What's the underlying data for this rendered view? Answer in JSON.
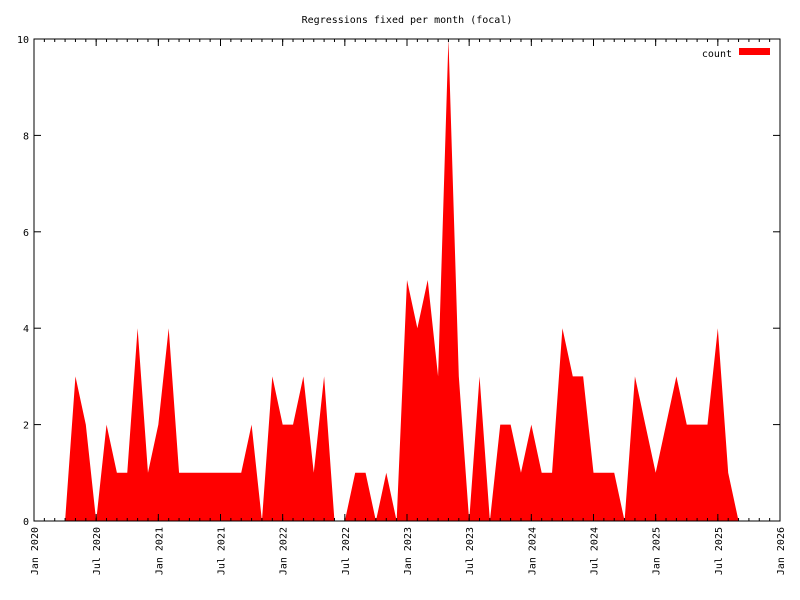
{
  "chart_data": {
    "type": "area",
    "title": "Regressions fixed per month (focal)",
    "xlabel": "",
    "ylabel": "",
    "xlim": [
      "2020-01",
      "2026-01"
    ],
    "ylim": [
      0,
      10
    ],
    "grid": false,
    "legend_position": "top-right",
    "x_ticks": [
      "Jan 2020",
      "Jul 2020",
      "Jan 2021",
      "Jul 2021",
      "Jan 2022",
      "Jul 2022",
      "Jan 2023",
      "Jul 2023",
      "Jan 2024",
      "Jul 2024",
      "Jan 2025",
      "Jul 2025",
      "Jan 2026"
    ],
    "y_ticks": [
      "0",
      "2",
      "4",
      "6",
      "8",
      "10"
    ],
    "series": [
      {
        "name": "count",
        "color": "#ff0000",
        "x": [
          "2020-04",
          "2020-05",
          "2020-06",
          "2020-07",
          "2020-08",
          "2020-09",
          "2020-10",
          "2020-11",
          "2020-12",
          "2021-01",
          "2021-02",
          "2021-03",
          "2021-04",
          "2021-05",
          "2021-06",
          "2021-07",
          "2021-08",
          "2021-09",
          "2021-10",
          "2021-11",
          "2021-12",
          "2022-01",
          "2022-02",
          "2022-03",
          "2022-04",
          "2022-05",
          "2022-06",
          "2022-07",
          "2022-08",
          "2022-09",
          "2022-10",
          "2022-11",
          "2022-12",
          "2023-01",
          "2023-02",
          "2023-03",
          "2023-04",
          "2023-05",
          "2023-06",
          "2023-07",
          "2023-08",
          "2023-09",
          "2023-10",
          "2023-11",
          "2023-12",
          "2024-01",
          "2024-02",
          "2024-03",
          "2024-04",
          "2024-05",
          "2024-06",
          "2024-07",
          "2024-08",
          "2024-09",
          "2024-10",
          "2024-11",
          "2024-12",
          "2025-01",
          "2025-02",
          "2025-03",
          "2025-04",
          "2025-05",
          "2025-06",
          "2025-07",
          "2025-08",
          "2025-09"
        ],
        "values": [
          0,
          3,
          2,
          0,
          2,
          1,
          1,
          4,
          1,
          2,
          4,
          1,
          1,
          1,
          1,
          1,
          1,
          1,
          2,
          0,
          3,
          2,
          2,
          3,
          1,
          3,
          0,
          0,
          1,
          1,
          0,
          1,
          0,
          5,
          4,
          5,
          3,
          10,
          3,
          0,
          3,
          0,
          2,
          2,
          1,
          2,
          1,
          1,
          4,
          3,
          3,
          1,
          1,
          1,
          0,
          3,
          2,
          1,
          2,
          3,
          2,
          2,
          2,
          4,
          1,
          0
        ]
      }
    ]
  }
}
